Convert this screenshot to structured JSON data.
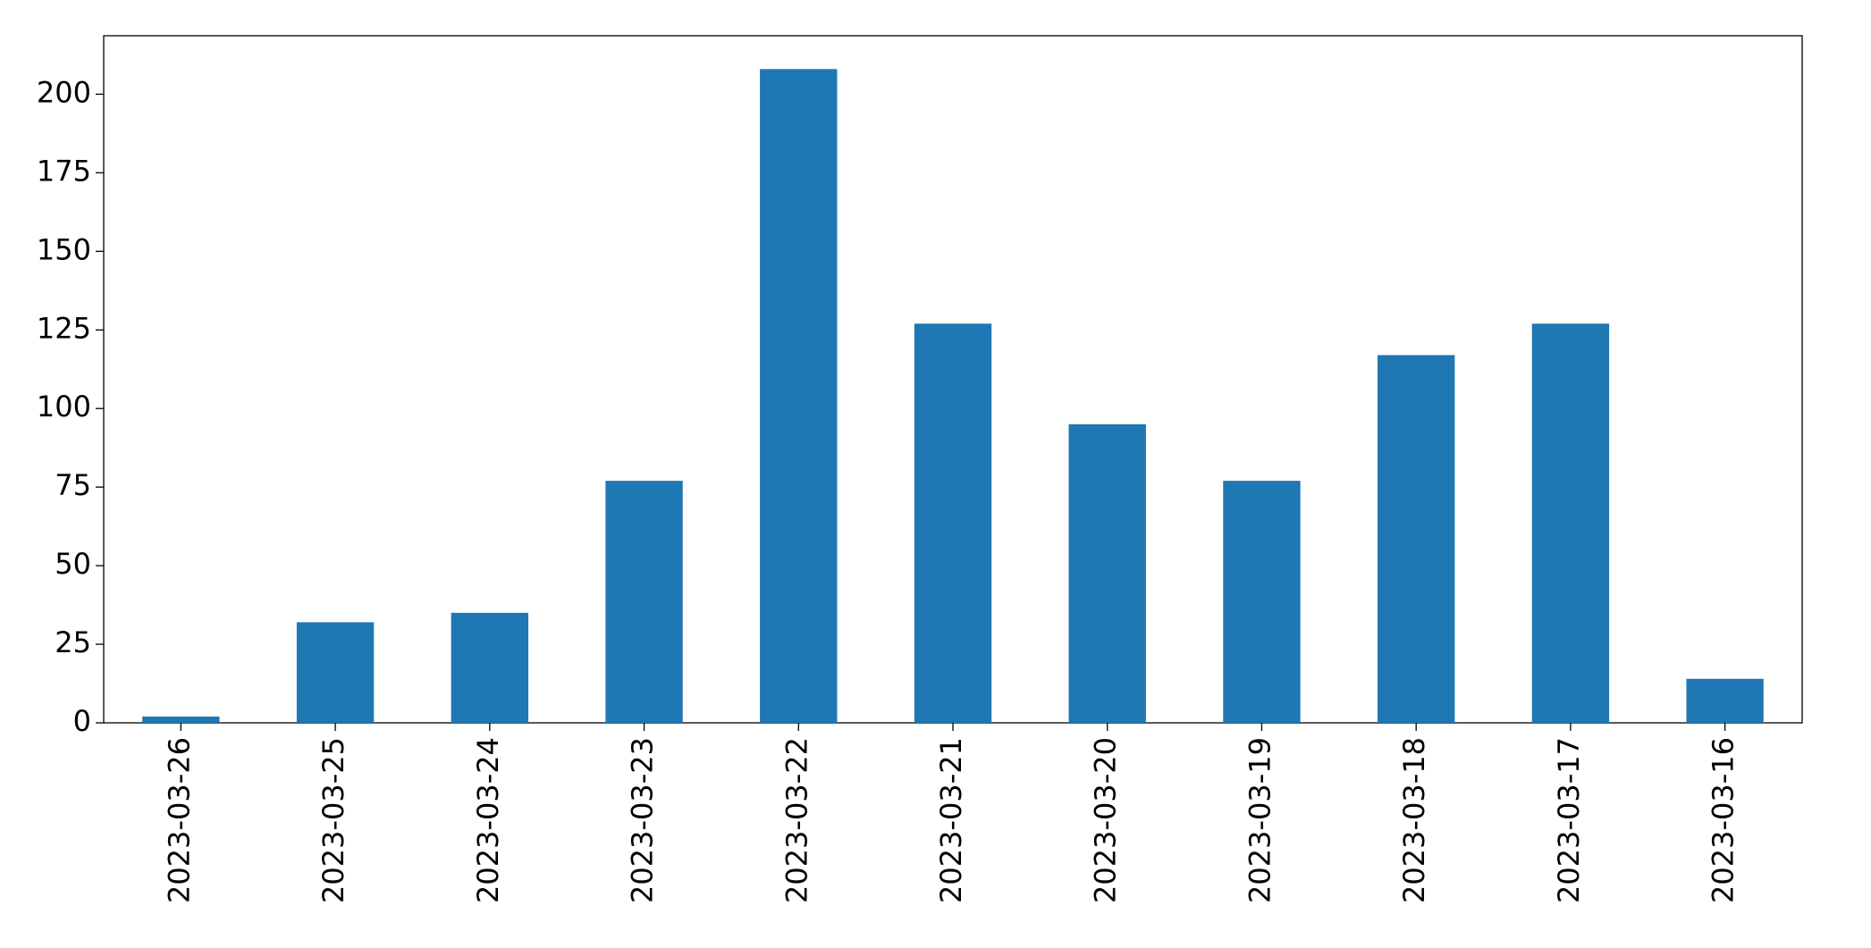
{
  "chart_data": {
    "type": "bar",
    "categories": [
      "2023-03-26",
      "2023-03-25",
      "2023-03-24",
      "2023-03-23",
      "2023-03-22",
      "2023-03-21",
      "2023-03-20",
      "2023-03-19",
      "2023-03-18",
      "2023-03-17",
      "2023-03-16"
    ],
    "values": [
      2,
      32,
      35,
      77,
      208,
      127,
      95,
      77,
      117,
      127,
      14
    ],
    "color": "#1f77b4",
    "ylim": [
      0,
      218.6
    ],
    "yticks": [
      0,
      25,
      50,
      75,
      100,
      125,
      150,
      175,
      200
    ],
    "grid": false
  }
}
